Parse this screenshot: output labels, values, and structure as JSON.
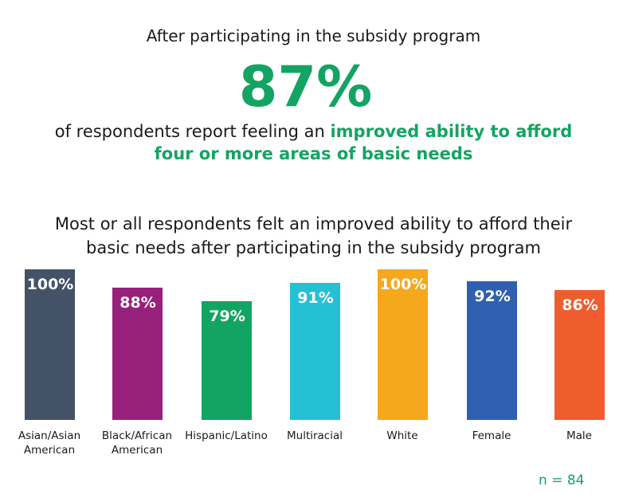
{
  "header": {
    "intro": "After participating in the subsidy program",
    "big_stat": "87%",
    "line1_plain": "of respondents report feeling an ",
    "line1_highlight": "improved ability to afford",
    "line2_highlight": "four or more areas of basic needs"
  },
  "chart_data": {
    "type": "bar",
    "title_line1": "Most or all respondents felt an improved ability to afford their",
    "title_line2": "basic needs after participating in the subsidy program",
    "categories": [
      "Asian/Asian American",
      "Black/African American",
      "Hispanic/Latino",
      "Multiracial",
      "White",
      "Female",
      "Male"
    ],
    "category_lines": [
      [
        "Asian/Asian",
        "American"
      ],
      [
        "Black/African",
        "American"
      ],
      [
        "Hispanic/Latino"
      ],
      [
        "Multiracial"
      ],
      [
        "White"
      ],
      [
        "Female"
      ],
      [
        "Male"
      ]
    ],
    "values": [
      100,
      88,
      79,
      91,
      100,
      92,
      86
    ],
    "labels": [
      "100%",
      "88%",
      "79%",
      "91%",
      "100%",
      "92%",
      "86%"
    ],
    "colors": [
      "#435266",
      "#97207b",
      "#13a463",
      "#26c0d4",
      "#f5a81c",
      "#2f60b0",
      "#ef5d2f"
    ],
    "ylim": [
      0,
      100
    ],
    "note": "n = 84"
  }
}
